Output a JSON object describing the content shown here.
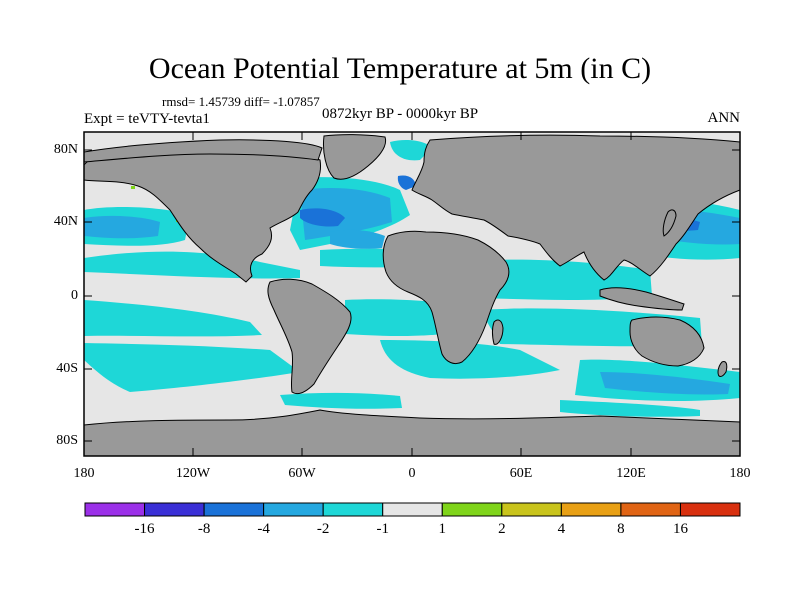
{
  "title": "Ocean Potential Temperature at 5m (in C)",
  "stats": "rmsd= 1.45739 diff= -1.07857",
  "experiment": "Expt = teVTY-tevta1",
  "period": "0872kyr BP - 0000kyr BP",
  "season": "ANN",
  "y_ticks": [
    "80N",
    "40N",
    "0",
    "40S",
    "80S"
  ],
  "x_ticks": [
    "180",
    "120W",
    "60W",
    "0",
    "60E",
    "120E",
    "180"
  ],
  "colorbar": {
    "colors": [
      "#9b30e8",
      "#3a2fd6",
      "#1a72d8",
      "#25a8e0",
      "#1ed7d7",
      "#e6e6e6",
      "#7fd41a",
      "#c9c41c",
      "#e8a015",
      "#e06414",
      "#d8300f"
    ],
    "labels": [
      "-16",
      "-8",
      "-4",
      "-2",
      "-1",
      "1",
      "2",
      "4",
      "8",
      "16"
    ]
  },
  "colors": {
    "land": "#999999",
    "neutral": "#e6e6e6",
    "cyan": "#1ed7d7",
    "light_blue": "#25a8e0",
    "mid_blue": "#1a72d8",
    "green": "#7fd41a"
  }
}
